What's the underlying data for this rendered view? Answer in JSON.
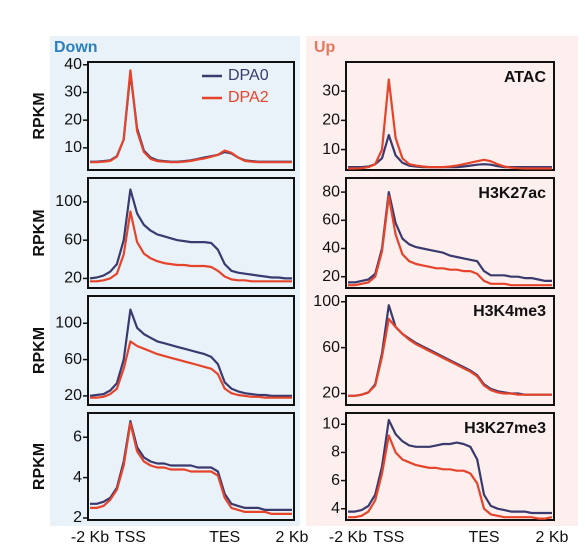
{
  "chart_data": [
    {
      "type": "line",
      "title": "Down",
      "ylabel": "RPKM",
      "legend": "top-right",
      "ylim": [
        2,
        41
      ],
      "yticks": [
        10,
        20,
        30,
        40
      ],
      "series": [
        {
          "name": "DPA0",
          "color": "#3b3a6e",
          "values": [
            5,
            5,
            5.2,
            5.5,
            7,
            13,
            37,
            17,
            9,
            6.5,
            5.5,
            5.2,
            5,
            5,
            5.2,
            5.5,
            6,
            6.5,
            7,
            7.5,
            8.5,
            8,
            6.5,
            5.5,
            5.2,
            5,
            5,
            5,
            5,
            5,
            5
          ]
        },
        {
          "name": "DPA2",
          "color": "#e5442b",
          "values": [
            4.8,
            4.8,
            5,
            5.3,
            6.8,
            13,
            38,
            16,
            8.5,
            6,
            5.2,
            5,
            4.8,
            4.8,
            5,
            5.3,
            5.8,
            6.2,
            6.8,
            7.5,
            9,
            8.2,
            6.5,
            5.3,
            5,
            4.8,
            4.8,
            4.8,
            4.8,
            4.8,
            4.8
          ]
        }
      ]
    },
    {
      "type": "line",
      "title": "Up",
      "label": "ATAC",
      "ylim": [
        3,
        40
      ],
      "yticks": [
        10,
        20,
        30
      ],
      "series": [
        {
          "color": "#3b3a6e",
          "values": [
            4,
            4,
            4,
            4.2,
            5,
            7,
            15,
            8,
            5.5,
            4.5,
            4.2,
            4,
            4,
            4,
            4,
            4,
            4,
            4.2,
            4.5,
            4.8,
            5,
            4.8,
            4.3,
            4,
            4,
            4,
            4,
            4,
            4,
            4,
            4
          ]
        },
        {
          "color": "#e5442b",
          "values": [
            3.5,
            3.5,
            3.6,
            4,
            5,
            10,
            34,
            14,
            7,
            5,
            4.5,
            4.2,
            4,
            4,
            4,
            4.2,
            4.5,
            5,
            5.5,
            6,
            6.5,
            6,
            5,
            4.2,
            3.8,
            3.6,
            3.5,
            3.5,
            3.5,
            3.5,
            3.5
          ]
        }
      ]
    },
    {
      "type": "line",
      "ylabel": "RPKM",
      "ylim": [
        10,
        125
      ],
      "yticks": [
        20,
        60,
        100
      ],
      "series": [
        {
          "color": "#3b3a6e",
          "values": [
            20,
            21,
            23,
            27,
            35,
            60,
            113,
            88,
            76,
            70,
            66,
            64,
            62,
            60,
            59,
            58,
            58,
            58,
            57,
            50,
            35,
            28,
            26,
            25,
            24,
            23,
            22,
            21,
            21,
            20,
            20
          ]
        },
        {
          "color": "#e5442b",
          "values": [
            17,
            17,
            18,
            20,
            25,
            45,
            90,
            58,
            46,
            41,
            38,
            36,
            35,
            34,
            34,
            33,
            33,
            33,
            32,
            28,
            22,
            19,
            18,
            18,
            17,
            17,
            17,
            17,
            17,
            17,
            17
          ]
        }
      ]
    },
    {
      "type": "line",
      "label": "H3K27ac",
      "ylim": [
        12,
        90
      ],
      "yticks": [
        20,
        40,
        60,
        80
      ],
      "series": [
        {
          "color": "#3b3a6e",
          "values": [
            16,
            16,
            17,
            18,
            22,
            40,
            80,
            58,
            47,
            43,
            41,
            40,
            39,
            38,
            37,
            35,
            34,
            33,
            32,
            31,
            24,
            21,
            21,
            21,
            20,
            20,
            19,
            19,
            18,
            17,
            17
          ]
        },
        {
          "color": "#e5442b",
          "values": [
            14,
            14,
            15,
            16,
            20,
            38,
            77,
            50,
            36,
            31,
            29,
            28,
            27,
            26,
            26,
            25,
            25,
            24,
            24,
            22,
            17,
            15,
            15,
            15,
            14,
            14,
            14,
            14,
            14,
            14,
            14
          ]
        }
      ]
    },
    {
      "type": "line",
      "ylabel": "RPKM",
      "ylim": [
        10,
        130
      ],
      "yticks": [
        20,
        60,
        100
      ],
      "series": [
        {
          "color": "#3b3a6e",
          "values": [
            20,
            21,
            22,
            26,
            34,
            60,
            115,
            95,
            88,
            84,
            80,
            78,
            76,
            74,
            72,
            70,
            68,
            66,
            63,
            55,
            35,
            28,
            25,
            23,
            22,
            21,
            21,
            20,
            20,
            20,
            20
          ]
        },
        {
          "color": "#e5442b",
          "values": [
            18,
            18,
            19,
            22,
            28,
            50,
            80,
            75,
            72,
            69,
            66,
            64,
            62,
            60,
            58,
            56,
            54,
            52,
            50,
            44,
            28,
            23,
            21,
            20,
            19,
            19,
            18,
            18,
            18,
            18,
            18
          ]
        }
      ]
    },
    {
      "type": "line",
      "label": "H3K4me3",
      "ylim": [
        10,
        105
      ],
      "yticks": [
        20,
        60,
        100
      ],
      "series": [
        {
          "color": "#3b3a6e",
          "values": [
            18,
            18,
            19,
            21,
            28,
            55,
            97,
            78,
            72,
            68,
            64,
            61,
            58,
            55,
            52,
            49,
            46,
            43,
            40,
            36,
            28,
            24,
            22,
            21,
            20,
            20,
            19,
            19,
            19,
            19,
            19
          ]
        },
        {
          "color": "#e5442b",
          "values": [
            18,
            18,
            19,
            21,
            27,
            52,
            85,
            78,
            72,
            67,
            63,
            60,
            57,
            54,
            51,
            48,
            45,
            42,
            39,
            35,
            27,
            23,
            21,
            20,
            20,
            19,
            19,
            19,
            19,
            19,
            19
          ]
        }
      ]
    },
    {
      "type": "line",
      "ylabel": "RPKM",
      "ylim": [
        1.9,
        7.2
      ],
      "yticks": [
        2,
        4,
        6
      ],
      "categories": [
        "-2 Kb",
        null,
        null,
        null,
        null,
        null,
        "TSS",
        null,
        null,
        null,
        null,
        null,
        null,
        null,
        null,
        null,
        null,
        null,
        null,
        null,
        "TES",
        null,
        null,
        null,
        null,
        null,
        null,
        null,
        null,
        null,
        "2 Kb"
      ],
      "series": [
        {
          "color": "#3b3a6e",
          "values": [
            2.7,
            2.7,
            2.8,
            3.0,
            3.5,
            4.8,
            6.8,
            5.5,
            5.0,
            4.8,
            4.7,
            4.7,
            4.6,
            4.6,
            4.6,
            4.6,
            4.5,
            4.5,
            4.5,
            4.3,
            3.2,
            2.7,
            2.6,
            2.5,
            2.5,
            2.5,
            2.4,
            2.4,
            2.4,
            2.4,
            2.4
          ]
        },
        {
          "color": "#e5442b",
          "values": [
            2.5,
            2.5,
            2.6,
            2.9,
            3.4,
            4.6,
            6.7,
            5.3,
            4.8,
            4.6,
            4.5,
            4.5,
            4.4,
            4.4,
            4.4,
            4.3,
            4.3,
            4.3,
            4.3,
            4.1,
            3.0,
            2.5,
            2.4,
            2.3,
            2.3,
            2.3,
            2.3,
            2.2,
            2.2,
            2.2,
            2.2
          ]
        }
      ]
    },
    {
      "type": "line",
      "label": "H3K27me3",
      "ylim": [
        3.2,
        10.8
      ],
      "yticks": [
        4,
        6,
        8,
        10
      ],
      "categories": [
        "-2 Kb",
        null,
        null,
        null,
        null,
        null,
        "TSS",
        null,
        null,
        null,
        null,
        null,
        null,
        null,
        null,
        null,
        null,
        null,
        null,
        null,
        "TES",
        null,
        null,
        null,
        null,
        null,
        null,
        null,
        null,
        null,
        "2 Kb"
      ],
      "series": [
        {
          "color": "#3b3a6e",
          "values": [
            3.8,
            3.8,
            3.9,
            4.2,
            5.0,
            7.0,
            10.3,
            9.3,
            8.8,
            8.5,
            8.4,
            8.4,
            8.4,
            8.5,
            8.6,
            8.6,
            8.7,
            8.6,
            8.4,
            7.5,
            5.0,
            4.2,
            4.0,
            3.9,
            3.8,
            3.8,
            3.8,
            3.7,
            3.7,
            3.7,
            3.7
          ]
        },
        {
          "color": "#e5442b",
          "values": [
            3.4,
            3.4,
            3.5,
            3.8,
            4.6,
            6.5,
            9.2,
            8.0,
            7.5,
            7.3,
            7.1,
            7.0,
            6.9,
            6.9,
            6.8,
            6.8,
            6.7,
            6.7,
            6.5,
            5.8,
            4.0,
            3.6,
            3.5,
            3.4,
            3.4,
            3.4,
            3.4,
            3.4,
            3.3,
            3.3,
            3.4
          ]
        }
      ]
    }
  ]
}
